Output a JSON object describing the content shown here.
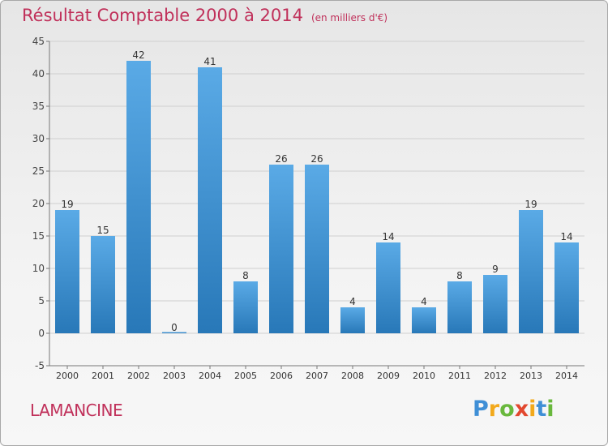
{
  "header": {
    "title": "Résultat Comptable 2000 à 2014",
    "subtitle": "(en milliers d'€)"
  },
  "footer": {
    "commune": "LAMANCINE",
    "brand_letters": [
      "P",
      "r",
      "o",
      "x",
      "i",
      "t",
      "i"
    ]
  },
  "colors": {
    "title": "#c0305a",
    "bar_top": "#5aaae6",
    "bar_bottom": "#2878b8",
    "grid": "#cfcfcf"
  },
  "chart_data": {
    "type": "bar",
    "title": "Résultat Comptable 2000 à 2014",
    "subtitle": "(en milliers d'€)",
    "categories": [
      "2000",
      "2001",
      "2002",
      "2003",
      "2004",
      "2005",
      "2006",
      "2007",
      "2008",
      "2009",
      "2010",
      "2011",
      "2012",
      "2013",
      "2014"
    ],
    "values": [
      19,
      15,
      42,
      0,
      41,
      8,
      26,
      26,
      4,
      14,
      4,
      8,
      9,
      19,
      14
    ],
    "data_labels": [
      "19",
      "15",
      "42",
      "0",
      "41",
      "8",
      "26",
      "26",
      "4",
      "14",
      "4",
      "8",
      "9",
      "19",
      "14"
    ],
    "ylim": [
      -5,
      45
    ],
    "yticks": [
      -5,
      0,
      5,
      10,
      15,
      20,
      25,
      30,
      35,
      40,
      45
    ],
    "ytick_labels": [
      "-5",
      "0",
      "5",
      "10",
      "15",
      "20",
      "25",
      "30",
      "35",
      "40",
      "45"
    ],
    "xlabel": "",
    "ylabel": "",
    "grid": true,
    "legend": "none"
  }
}
